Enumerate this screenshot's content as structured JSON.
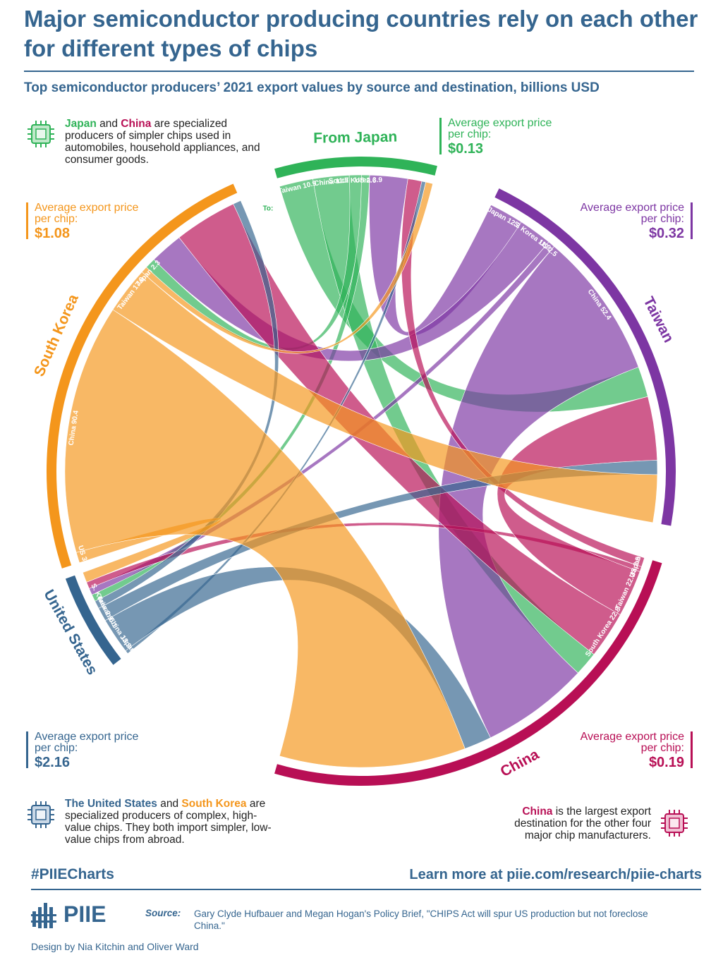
{
  "title": "Major semiconductor producing countries rely on each other for different types of chips",
  "subtitle": "Top semiconductor producers’ 2021 export values by source and destination, billions USD",
  "colors": {
    "japan": "#2fb358",
    "taiwan": "#7d36a3",
    "china": "#b80f55",
    "south_korea": "#f4961c",
    "united_states": "#35658f",
    "title": "#35658f"
  },
  "icons": [
    "chip-icon"
  ],
  "notes": {
    "japan_china": {
      "japan": "Japan",
      "and": " and ",
      "china": "China",
      "rest": " are specialized producers of simpler chips used in automobiles, household appliances, and consumer goods."
    },
    "us_korea": {
      "us": "The United States",
      "and": " and ",
      "korea": "South Korea",
      "rest": " are specialized producers of complex, high-value chips. They both import simpler, low-value chips from abroad."
    },
    "china": {
      "china": "China",
      "rest": " is the largest export destination for the other four major chip manufacturers."
    }
  },
  "prices": {
    "label": "Average export price per chip:",
    "japan": "$0.13",
    "taiwan": "$0.32",
    "south_korea": "$1.08",
    "united_states": "$2.16",
    "china": "$0.19"
  },
  "chart_data": {
    "type": "chord",
    "to_label": "To:",
    "arc_labels": {
      "japan": "From Japan",
      "taiwan": "Taiwan",
      "south_korea": "South Korea",
      "china": "China",
      "united_states": "United States"
    },
    "sources": [
      {
        "key": "japan",
        "name": "Japan",
        "flows": [
          {
            "to": "Taiwan",
            "value": 10.9
          },
          {
            "to": "China",
            "value": 11.7
          },
          {
            "to": "South Korea",
            "value": 3.9
          },
          {
            "to": "US",
            "value": 2.6
          }
        ]
      },
      {
        "key": "taiwan",
        "name": "Taiwan",
        "flows": [
          {
            "to": "Japan",
            "value": 12.3
          },
          {
            "to": "S. Korea",
            "value": 11.9
          },
          {
            "to": "US",
            "value": 2.5
          },
          {
            "to": "China",
            "value": 52.4
          }
        ]
      },
      {
        "key": "china",
        "name": "China",
        "flows": [
          {
            "to": "Japan",
            "value": 4.5
          },
          {
            "to": "US",
            "value": 2.5
          },
          {
            "to": "Taiwan",
            "value": 22.7
          },
          {
            "to": "South Korea",
            "value": 22.8
          }
        ]
      },
      {
        "key": "united_states",
        "name": "United States",
        "flows": [
          {
            "to": "Japan",
            "value": 1.3
          },
          {
            "to": "China",
            "value": 13.3
          },
          {
            "to": "Taiwan",
            "value": 5.1
          },
          {
            "to": "S. Korea",
            "value": 2.9
          }
        ]
      },
      {
        "key": "south_korea",
        "name": "South Korea",
        "flows": [
          {
            "to": "US",
            "value": 3.8
          },
          {
            "to": "China",
            "value": 90.4
          },
          {
            "to": "Taiwan",
            "value": 17.0
          },
          {
            "to": "Japan",
            "value": 2.3
          }
        ]
      }
    ]
  },
  "footer": {
    "hashtag": "#PIIECharts",
    "link": "Learn more at piie.com/research/piie-charts",
    "logo": "PIIE",
    "source_label": "Source:",
    "source": "Gary Clyde Hufbauer and Megan Hogan's Policy Brief, \"CHIPS Act will spur US production but not foreclose China.\"",
    "design": "Design by Nia Kitchin and Oliver Ward"
  }
}
